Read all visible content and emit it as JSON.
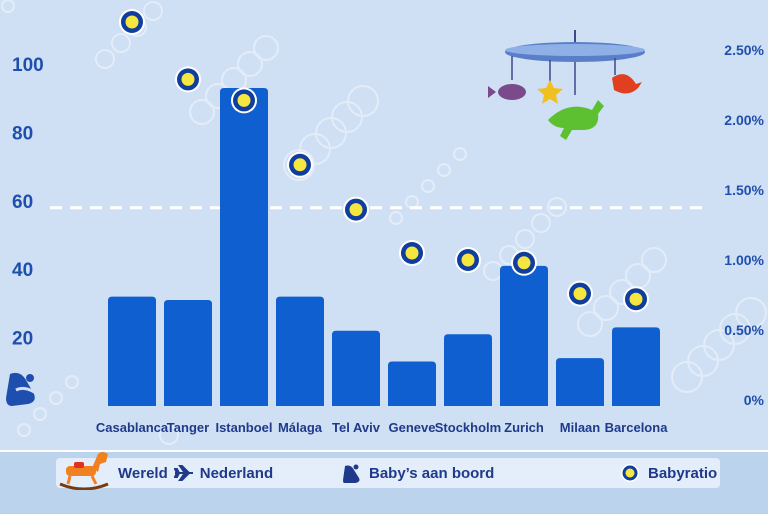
{
  "chart_data": {
    "type": "bar",
    "categories": [
      "Casablanca",
      "Tanger",
      "Istanboel",
      "Málaga",
      "Tel Aviv",
      "Geneve",
      "Stockholm",
      "Zurich",
      "Milaan",
      "Barcelona"
    ],
    "series": [
      {
        "name": "Baby's aan boord",
        "type": "bar",
        "axis": "left",
        "values": [
          32,
          31,
          93,
          32,
          22,
          13,
          21,
          41,
          14,
          23
        ]
      },
      {
        "name": "Babyratio",
        "type": "scatter",
        "axis": "right",
        "values": [
          2.7,
          2.29,
          2.14,
          1.68,
          1.36,
          1.05,
          1.0,
          0.98,
          0.76,
          0.72
        ]
      }
    ],
    "reference_line": {
      "axis": "left",
      "value": 58
    },
    "y_left": {
      "ticks": [
        20,
        40,
        60,
        80,
        100
      ],
      "ylim": [
        0,
        105
      ]
    },
    "y_right": {
      "ticks": [
        "0%",
        "0.50%",
        "1.00%",
        "1.50%",
        "2.00%",
        "2.50%"
      ],
      "tick_values": [
        0,
        0.5,
        1.0,
        1.5,
        2.0,
        2.5
      ],
      "ylim": [
        0,
        2.86
      ]
    },
    "colors": {
      "bar": "#0f5fd0",
      "marker_outer": "#0f3e9e",
      "marker_inner": "#f5e640",
      "axis_text": "#1f4fae",
      "category_text": "#1f3a8a",
      "background": "#cfe0f4"
    }
  },
  "legend": {
    "route_from": "Wereld",
    "route_to": "Nederland",
    "babies_label": "Baby’s aan boord",
    "ratio_label": "Babyratio"
  },
  "icons": [
    "rocking-horse-icon",
    "airplane-icon",
    "baby-seat-icon",
    "mobile-toy-icon",
    "ratio-marker-icon"
  ]
}
